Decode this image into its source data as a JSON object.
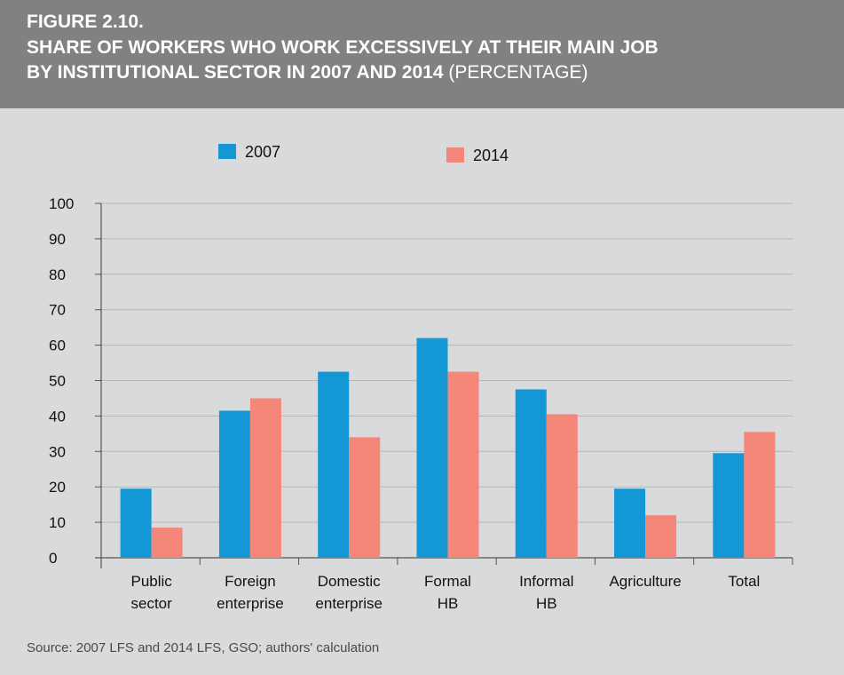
{
  "header": {
    "figure_label": "FIGURE 2.10.",
    "title_line1": "SHARE OF WORKERS WHO WORK EXCESSIVELY AT THEIR MAIN JOB",
    "title_line2": "BY INSTITUTIONAL SECTOR IN 2007 AND 2014",
    "title_unit": "(PERCENTAGE)"
  },
  "source": "Source: 2007 LFS and 2014 LFS, GSO; authors' calculation",
  "chart_data": {
    "type": "bar",
    "categories": [
      [
        "Public",
        "sector"
      ],
      [
        "Foreign",
        "enterprise"
      ],
      [
        "Domestic",
        "enterprise"
      ],
      [
        "Formal",
        "HB"
      ],
      [
        "Informal",
        "HB"
      ],
      [
        "Agriculture"
      ],
      [
        "Total"
      ]
    ],
    "series": [
      {
        "name": "2007",
        "color": "#1497d5",
        "values": [
          19.5,
          41.5,
          52.5,
          62,
          47.5,
          19.5,
          29.5
        ]
      },
      {
        "name": "2014",
        "color": "#f4877a",
        "values": [
          8.5,
          45,
          34,
          52.5,
          40.5,
          12,
          35.5
        ]
      }
    ],
    "ylim": [
      0,
      100
    ],
    "yticks": [
      0,
      10,
      20,
      30,
      40,
      50,
      60,
      70,
      80,
      90,
      100
    ],
    "grid": true,
    "legend_position": "top",
    "xlabel": "",
    "ylabel": ""
  }
}
